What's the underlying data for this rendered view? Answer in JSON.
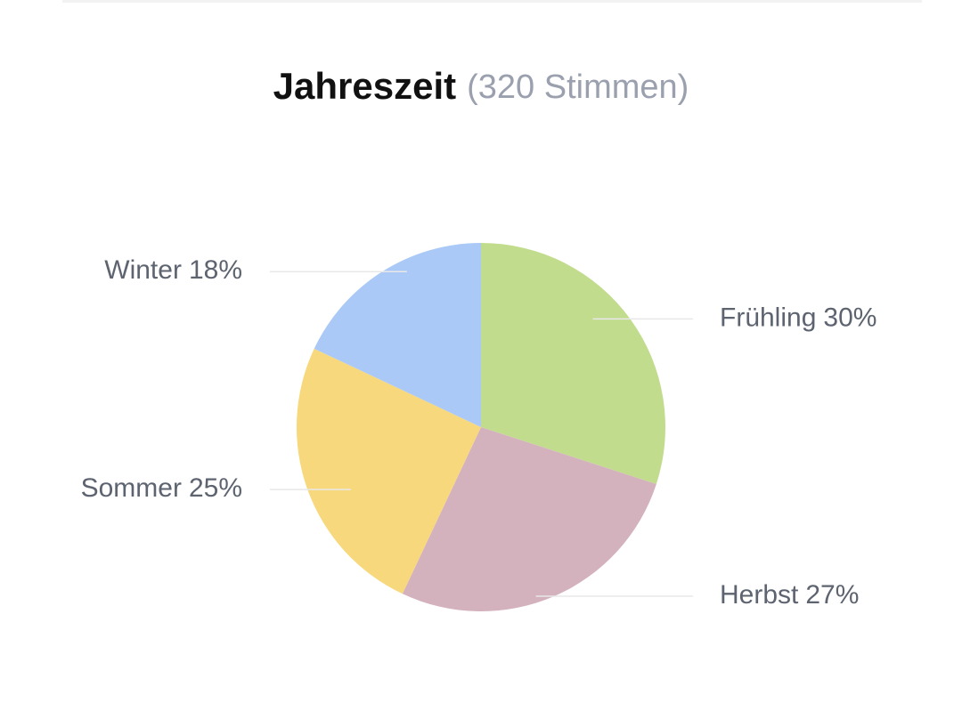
{
  "chart_data": {
    "type": "pie",
    "title": "Jahreszeit",
    "subtitle": "(320 Stimmen)",
    "categories": [
      "Frühling",
      "Herbst",
      "Sommer",
      "Winter"
    ],
    "values": [
      30,
      27,
      25,
      18
    ],
    "value_labels": [
      "30%",
      "27%",
      "25%",
      "18%"
    ],
    "colors": [
      "#c2dc8e",
      "#d4b2bd",
      "#f7d87c",
      "#abc9f7"
    ]
  }
}
